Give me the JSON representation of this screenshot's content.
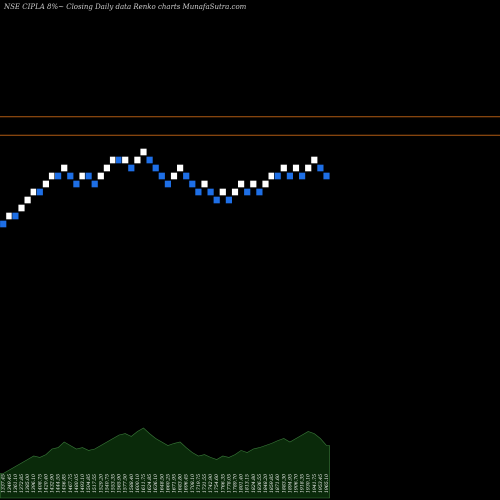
{
  "chart_data": {
    "type": "renko",
    "title": "NSE CIPLA 8%~ Closing Daily data Renko charts MunafaSutra.com",
    "colors": {
      "up_brick": "#ffffff",
      "down_brick": "#1e6fe6",
      "brick_border": "#000000",
      "reference_line": "#b05a12",
      "volume_fill": "#0a2a0a",
      "volume_top": "#3a7a3a",
      "background": "#000000"
    },
    "ylim": [
      0,
      17
    ],
    "reference_lines": [
      14.4,
      12.1
    ],
    "bricks": [
      {
        "level": 1,
        "dir": "down"
      },
      {
        "level": 2,
        "dir": "up"
      },
      {
        "level": 2,
        "dir": "down"
      },
      {
        "level": 3,
        "dir": "up"
      },
      {
        "level": 4,
        "dir": "up"
      },
      {
        "level": 5,
        "dir": "up"
      },
      {
        "level": 5,
        "dir": "down"
      },
      {
        "level": 6,
        "dir": "up"
      },
      {
        "level": 7,
        "dir": "up"
      },
      {
        "level": 7,
        "dir": "down"
      },
      {
        "level": 8,
        "dir": "up"
      },
      {
        "level": 7,
        "dir": "down"
      },
      {
        "level": 6,
        "dir": "down"
      },
      {
        "level": 7,
        "dir": "up"
      },
      {
        "level": 7,
        "dir": "down"
      },
      {
        "level": 6,
        "dir": "down"
      },
      {
        "level": 7,
        "dir": "up"
      },
      {
        "level": 8,
        "dir": "up"
      },
      {
        "level": 9,
        "dir": "up"
      },
      {
        "level": 9,
        "dir": "down"
      },
      {
        "level": 9,
        "dir": "up"
      },
      {
        "level": 8,
        "dir": "down"
      },
      {
        "level": 9,
        "dir": "up"
      },
      {
        "level": 10,
        "dir": "up"
      },
      {
        "level": 9,
        "dir": "down"
      },
      {
        "level": 8,
        "dir": "down"
      },
      {
        "level": 7,
        "dir": "down"
      },
      {
        "level": 6,
        "dir": "down"
      },
      {
        "level": 7,
        "dir": "up"
      },
      {
        "level": 8,
        "dir": "up"
      },
      {
        "level": 7,
        "dir": "down"
      },
      {
        "level": 6,
        "dir": "down"
      },
      {
        "level": 5,
        "dir": "down"
      },
      {
        "level": 6,
        "dir": "up"
      },
      {
        "level": 5,
        "dir": "down"
      },
      {
        "level": 4,
        "dir": "down"
      },
      {
        "level": 5,
        "dir": "up"
      },
      {
        "level": 4,
        "dir": "down"
      },
      {
        "level": 5,
        "dir": "up"
      },
      {
        "level": 6,
        "dir": "up"
      },
      {
        "level": 5,
        "dir": "down"
      },
      {
        "level": 6,
        "dir": "up"
      },
      {
        "level": 5,
        "dir": "down"
      },
      {
        "level": 6,
        "dir": "up"
      },
      {
        "level": 7,
        "dir": "up"
      },
      {
        "level": 7,
        "dir": "down"
      },
      {
        "level": 8,
        "dir": "up"
      },
      {
        "level": 7,
        "dir": "down"
      },
      {
        "level": 8,
        "dir": "up"
      },
      {
        "level": 7,
        "dir": "down"
      },
      {
        "level": 8,
        "dir": "up"
      },
      {
        "level": 9,
        "dir": "up"
      },
      {
        "level": 8,
        "dir": "down"
      },
      {
        "level": 7,
        "dir": "down"
      }
    ],
    "volume": [
      0.35,
      0.4,
      0.45,
      0.5,
      0.55,
      0.6,
      0.58,
      0.62,
      0.7,
      0.72,
      0.8,
      0.75,
      0.7,
      0.72,
      0.68,
      0.7,
      0.75,
      0.8,
      0.85,
      0.9,
      0.92,
      0.88,
      0.95,
      1.0,
      0.92,
      0.85,
      0.8,
      0.75,
      0.78,
      0.8,
      0.72,
      0.65,
      0.6,
      0.62,
      0.58,
      0.55,
      0.6,
      0.58,
      0.62,
      0.68,
      0.65,
      0.7,
      0.72,
      0.75,
      0.78,
      0.82,
      0.85,
      0.8,
      0.85,
      0.9,
      0.95,
      0.92,
      0.85,
      0.75
    ],
    "tick_labels": [
      "1337.45",
      "1349.45",
      "1361.10",
      "1372.85",
      "1385.00",
      "1396.10",
      "1408.75",
      "1420.40",
      "1432.90",
      "1444.55",
      "1456.85",
      "1467.75",
      "1480.05",
      "1493.10",
      "1504.85",
      "1517.55",
      "1529.20",
      "1540.75",
      "1553.35",
      "1565.90",
      "1577.50",
      "1588.40",
      "1600.10",
      "1611.75",
      "1624.85",
      "1636.10",
      "1648.50",
      "1660.25",
      "1671.95",
      "1683.80",
      "1696.45",
      "1708.10",
      "1719.75",
      "1731.55",
      "1742.90",
      "1754.60",
      "1766.35",
      "1778.05",
      "1789.70",
      "1801.40",
      "1813.15",
      "1824.80",
      "1836.55",
      "1848.20",
      "1859.85",
      "1871.60",
      "1883.30",
      "1894.95",
      "1906.70",
      "1918.35",
      "1930.10",
      "1941.75",
      "1953.45",
      "1965.10"
    ]
  }
}
